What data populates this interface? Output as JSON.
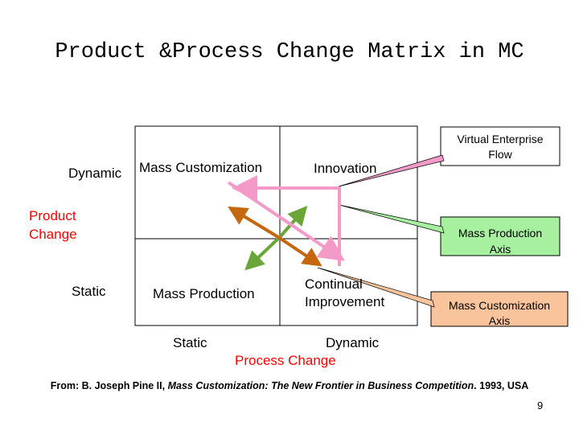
{
  "title": "Product &Process Change Matrix in MC",
  "quadrants": {
    "top_left": "Mass Customization",
    "top_right": "Innovation",
    "bottom_left": "Mass Production",
    "bottom_right_line1": "Continual",
    "bottom_right_line2": "Improvement"
  },
  "y_axis": {
    "label_line1": "Product",
    "label_line2": "Change",
    "top_tick": "Dynamic",
    "bottom_tick": "Static"
  },
  "x_axis": {
    "label": "Process Change",
    "left_tick": "Static",
    "right_tick": "Dynamic"
  },
  "callouts": {
    "virtual_enterprise": {
      "line1": "Virtual Enterprise",
      "line2": "Flow",
      "color": "#ffffff"
    },
    "mass_production_axis": {
      "line1": "Mass Production",
      "line2": "Axis",
      "color": "#a6f0a0"
    },
    "mass_customization_axis": {
      "line1": "Mass Customization",
      "line2": "Axis",
      "color": "#f9c39b"
    }
  },
  "arrow_colors": {
    "virtual_enterprise": "#f49ac8",
    "mass_production": "#6aa637",
    "mass_customization": "#c5670f"
  },
  "citation": {
    "prefix": "From: B. Joseph Pine II, ",
    "book": "Mass Customization: The New Frontier in Business Competition",
    "suffix": ". 1993, USA"
  },
  "page_number": "9"
}
